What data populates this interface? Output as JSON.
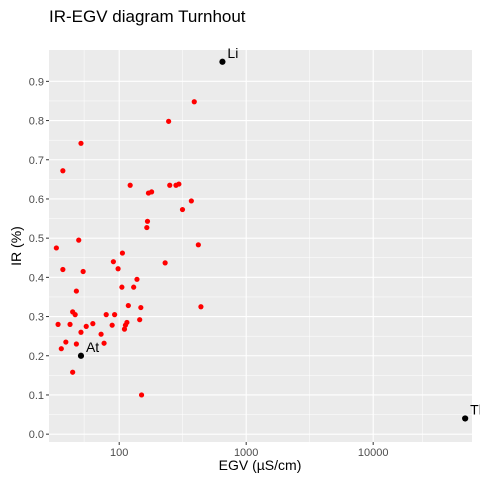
{
  "chart_data": {
    "type": "scatter",
    "title": "IR-EGV diagram Turnhout",
    "xlabel": "EGV (µS/cm)",
    "ylabel": "IR (%)",
    "x_scale": "log",
    "xlim": [
      28,
      60000
    ],
    "ylim": [
      -0.02,
      0.98
    ],
    "x_ticks": [
      {
        "value": 100,
        "label": "100"
      },
      {
        "value": 1000,
        "label": "1000"
      },
      {
        "value": 10000,
        "label": "10000"
      }
    ],
    "y_ticks": [
      {
        "value": 0.0,
        "label": "0.0"
      },
      {
        "value": 0.1,
        "label": "0.1"
      },
      {
        "value": 0.2,
        "label": "0.2"
      },
      {
        "value": 0.3,
        "label": "0.3"
      },
      {
        "value": 0.4,
        "label": "0.4"
      },
      {
        "value": 0.5,
        "label": "0.5"
      },
      {
        "value": 0.6,
        "label": "0.6"
      },
      {
        "value": 0.7,
        "label": "0.7"
      },
      {
        "value": 0.8,
        "label": "0.8"
      },
      {
        "value": 0.9,
        "label": "0.9"
      }
    ],
    "grid": true,
    "background": "#ebebeb",
    "series": [
      {
        "color": "#ff0000",
        "points": [
          {
            "x": 32,
            "y": 0.475
          },
          {
            "x": 36,
            "y": 0.672
          },
          {
            "x": 50,
            "y": 0.742
          },
          {
            "x": 36,
            "y": 0.42
          },
          {
            "x": 48,
            "y": 0.495
          },
          {
            "x": 52,
            "y": 0.415
          },
          {
            "x": 33,
            "y": 0.28
          },
          {
            "x": 35,
            "y": 0.218
          },
          {
            "x": 38,
            "y": 0.235
          },
          {
            "x": 41,
            "y": 0.28
          },
          {
            "x": 43,
            "y": 0.312
          },
          {
            "x": 45,
            "y": 0.305
          },
          {
            "x": 46,
            "y": 0.365
          },
          {
            "x": 46,
            "y": 0.23
          },
          {
            "x": 50,
            "y": 0.26
          },
          {
            "x": 55,
            "y": 0.275
          },
          {
            "x": 43,
            "y": 0.158
          },
          {
            "x": 62,
            "y": 0.282
          },
          {
            "x": 72,
            "y": 0.255
          },
          {
            "x": 76,
            "y": 0.232
          },
          {
            "x": 79,
            "y": 0.305
          },
          {
            "x": 88,
            "y": 0.278
          },
          {
            "x": 90,
            "y": 0.44
          },
          {
            "x": 92,
            "y": 0.305
          },
          {
            "x": 98,
            "y": 0.422
          },
          {
            "x": 105,
            "y": 0.375
          },
          {
            "x": 106,
            "y": 0.462
          },
          {
            "x": 110,
            "y": 0.268
          },
          {
            "x": 112,
            "y": 0.278
          },
          {
            "x": 115,
            "y": 0.285
          },
          {
            "x": 118,
            "y": 0.328
          },
          {
            "x": 122,
            "y": 0.635
          },
          {
            "x": 130,
            "y": 0.375
          },
          {
            "x": 138,
            "y": 0.395
          },
          {
            "x": 145,
            "y": 0.292
          },
          {
            "x": 148,
            "y": 0.323
          },
          {
            "x": 150,
            "y": 0.1
          },
          {
            "x": 165,
            "y": 0.527
          },
          {
            "x": 167,
            "y": 0.543
          },
          {
            "x": 170,
            "y": 0.615
          },
          {
            "x": 180,
            "y": 0.618
          },
          {
            "x": 230,
            "y": 0.437
          },
          {
            "x": 245,
            "y": 0.798
          },
          {
            "x": 250,
            "y": 0.635
          },
          {
            "x": 280,
            "y": 0.635
          },
          {
            "x": 295,
            "y": 0.638
          },
          {
            "x": 315,
            "y": 0.573
          },
          {
            "x": 370,
            "y": 0.595
          },
          {
            "x": 390,
            "y": 0.848
          },
          {
            "x": 420,
            "y": 0.483
          },
          {
            "x": 440,
            "y": 0.325
          }
        ]
      },
      {
        "color": "#000000",
        "points": [
          {
            "x": 50,
            "y": 0.2,
            "label": "At"
          },
          {
            "x": 650,
            "y": 0.95,
            "label": "Li"
          },
          {
            "x": 53000,
            "y": 0.04,
            "label": "Th"
          }
        ]
      }
    ]
  }
}
